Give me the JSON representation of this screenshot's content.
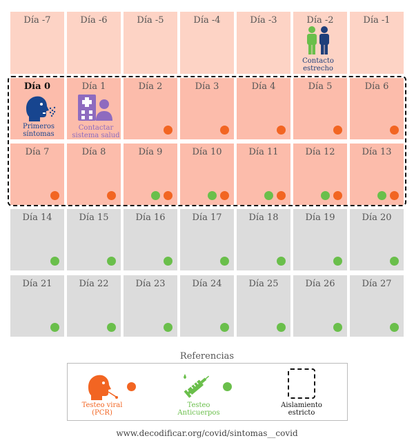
{
  "days": [
    "Día -7",
    "Día -6",
    "Día -5",
    "Día -4",
    "Día -3",
    "Día -2",
    "Día -1",
    "Día 0",
    "Día 1",
    "Día 2",
    "Día 3",
    "Día 4",
    "Día 5",
    "Día 6",
    "Día 7",
    "Día 8",
    "Día 9",
    "Día 10",
    "Día 11",
    "Día 12",
    "Día 13",
    "Día 14",
    "Día 15",
    "Día 16",
    "Día 17",
    "Día 18",
    "Día 19",
    "Día 20",
    "Día 21",
    "Día 22",
    "Día 23",
    "Día 24",
    "Día 25",
    "Día 26",
    "Día 27"
  ],
  "row_phases": [
    "pre-symptom",
    "isolation",
    "isolation",
    "post",
    "post"
  ],
  "row_colors": [
    "#fdd3c5",
    "#fcbcab",
    "#fcbcab",
    "#dcdcdc",
    "#dcdcdc"
  ],
  "tests": {
    "Día 2": [
      "pcr"
    ],
    "Día 3": [
      "pcr"
    ],
    "Día 4": [
      "pcr"
    ],
    "Día 5": [
      "pcr"
    ],
    "Día 6": [
      "pcr"
    ],
    "Día 7": [
      "pcr"
    ],
    "Día 8": [
      "pcr"
    ],
    "Día 9": [
      "antibody",
      "pcr"
    ],
    "Día 10": [
      "antibody",
      "pcr"
    ],
    "Día 11": [
      "antibody",
      "pcr"
    ],
    "Día 12": [
      "antibody",
      "pcr"
    ],
    "Día 13": [
      "antibody",
      "pcr"
    ],
    "Día 14": [
      "antibody"
    ],
    "Día 15": [
      "antibody"
    ],
    "Día 16": [
      "antibody"
    ],
    "Día 17": [
      "antibody"
    ],
    "Día 18": [
      "antibody"
    ],
    "Día 19": [
      "antibody"
    ],
    "Día 20": [
      "antibody"
    ],
    "Día 21": [
      "antibody"
    ],
    "Día 22": [
      "antibody"
    ],
    "Día 23": [
      "antibody"
    ],
    "Día 24": [
      "antibody"
    ],
    "Día 25": [
      "antibody"
    ],
    "Día 26": [
      "antibody"
    ],
    "Día 27": [
      "antibody"
    ]
  },
  "annotations": {
    "contact_line1": "Contacto",
    "contact_line2": "estrecho",
    "symptoms_line1": "Primeros",
    "symptoms_line2": "síntomas",
    "health_line1": "Contactar",
    "health_line2": "sistema salud"
  },
  "legend": {
    "title": "Referencias",
    "pcr_line1": "Testeo viral",
    "pcr_line2": "(PCR)",
    "antibody_line1": "Testeo",
    "antibody_line2": "Anticuerpos",
    "isolation_line1": "Aislamiento",
    "isolation_line2": "estricto"
  },
  "colors": {
    "pcr": "#f26522",
    "antibody": "#6abf4b",
    "contact_green": "#6abf4b",
    "contact_blue": "#1f3f7a",
    "symptom_blue": "#17458f",
    "health_purple": "#8e6bbf"
  },
  "icons": [
    "people-icon",
    "coughing-head-icon",
    "hospital-icon",
    "person-icon",
    "head-swab-icon",
    "syringe-icon"
  ],
  "footer": {
    "url": "www.decodificar.org/covid/sintomas__covid"
  }
}
